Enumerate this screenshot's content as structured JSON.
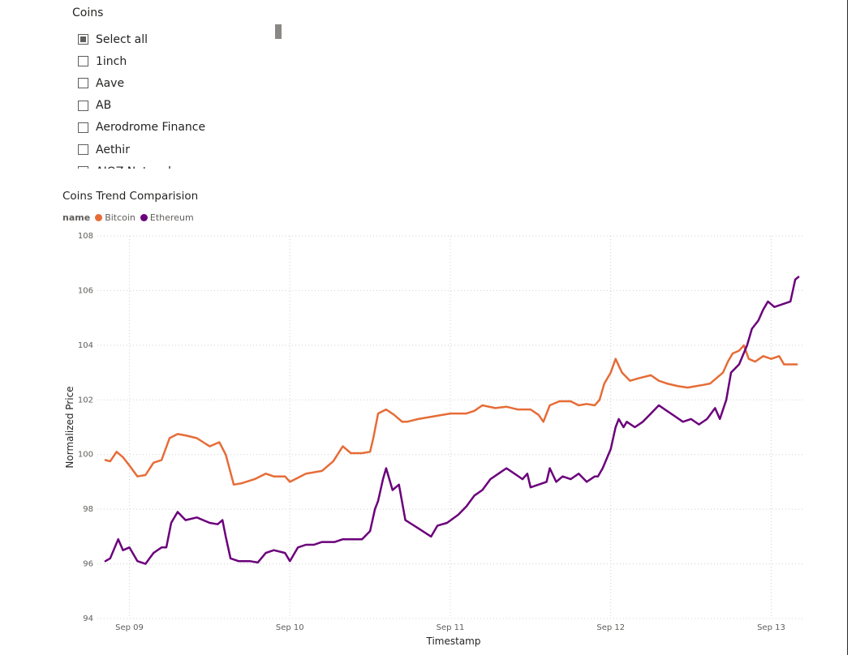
{
  "slicer": {
    "title": "Coins",
    "items": [
      {
        "label": "Select all",
        "state": "partial"
      },
      {
        "label": "1inch",
        "state": "unchecked"
      },
      {
        "label": "Aave",
        "state": "unchecked"
      },
      {
        "label": "AB",
        "state": "unchecked"
      },
      {
        "label": "Aerodrome Finance",
        "state": "unchecked"
      },
      {
        "label": "Aethir",
        "state": "unchecked"
      },
      {
        "label": "AIOZ Network",
        "state": "unchecked"
      }
    ]
  },
  "legend": {
    "key": "name"
  },
  "colors": {
    "bitcoin": "#E66C37",
    "ethereum": "#6B007B",
    "grid": "#d0d0d0"
  },
  "chart_data": {
    "type": "line",
    "title": "Coins Trend Comparision",
    "xlabel": "Timestamp",
    "ylabel": "Normalized Price",
    "ylim": [
      94,
      108
    ],
    "yticks": [
      94,
      96,
      98,
      100,
      102,
      104,
      106,
      108
    ],
    "xticks": [
      "Sep 09",
      "Sep 10",
      "Sep 11",
      "Sep 12",
      "Sep 13"
    ],
    "grid": true,
    "legend_position": "top-left",
    "series": [
      {
        "name": "Bitcoin",
        "points": [
          [
            8.85,
            99.8
          ],
          [
            8.88,
            99.75
          ],
          [
            8.92,
            100.1
          ],
          [
            8.96,
            99.9
          ],
          [
            9.0,
            99.6
          ],
          [
            9.05,
            99.2
          ],
          [
            9.1,
            99.25
          ],
          [
            9.15,
            99.7
          ],
          [
            9.2,
            99.8
          ],
          [
            9.25,
            100.6
          ],
          [
            9.3,
            100.75
          ],
          [
            9.35,
            100.7
          ],
          [
            9.42,
            100.6
          ],
          [
            9.5,
            100.3
          ],
          [
            9.56,
            100.45
          ],
          [
            9.6,
            100.0
          ],
          [
            9.65,
            98.9
          ],
          [
            9.7,
            98.95
          ],
          [
            9.78,
            99.1
          ],
          [
            9.85,
            99.3
          ],
          [
            9.9,
            99.2
          ],
          [
            9.97,
            99.2
          ],
          [
            10.0,
            99.0
          ],
          [
            10.05,
            99.15
          ],
          [
            10.1,
            99.3
          ],
          [
            10.2,
            99.4
          ],
          [
            10.27,
            99.75
          ],
          [
            10.33,
            100.3
          ],
          [
            10.38,
            100.05
          ],
          [
            10.45,
            100.05
          ],
          [
            10.5,
            100.1
          ],
          [
            10.52,
            100.6
          ],
          [
            10.55,
            101.5
          ],
          [
            10.6,
            101.65
          ],
          [
            10.65,
            101.45
          ],
          [
            10.7,
            101.2
          ],
          [
            10.73,
            101.2
          ],
          [
            10.8,
            101.3
          ],
          [
            10.9,
            101.4
          ],
          [
            11.0,
            101.5
          ],
          [
            11.1,
            101.5
          ],
          [
            11.15,
            101.6
          ],
          [
            11.2,
            101.8
          ],
          [
            11.28,
            101.7
          ],
          [
            11.35,
            101.75
          ],
          [
            11.42,
            101.65
          ],
          [
            11.5,
            101.65
          ],
          [
            11.55,
            101.45
          ],
          [
            11.58,
            101.2
          ],
          [
            11.62,
            101.8
          ],
          [
            11.68,
            101.95
          ],
          [
            11.75,
            101.95
          ],
          [
            11.8,
            101.8
          ],
          [
            11.85,
            101.85
          ],
          [
            11.9,
            101.8
          ],
          [
            11.93,
            102.0
          ],
          [
            11.96,
            102.6
          ],
          [
            12.0,
            103.0
          ],
          [
            12.03,
            103.5
          ],
          [
            12.07,
            103.0
          ],
          [
            12.12,
            102.7
          ],
          [
            12.18,
            102.8
          ],
          [
            12.25,
            102.9
          ],
          [
            12.3,
            102.7
          ],
          [
            12.35,
            102.6
          ],
          [
            12.42,
            102.5
          ],
          [
            12.48,
            102.45
          ],
          [
            12.53,
            102.5
          ],
          [
            12.58,
            102.55
          ],
          [
            12.62,
            102.6
          ],
          [
            12.66,
            102.8
          ],
          [
            12.7,
            103.0
          ],
          [
            12.73,
            103.4
          ],
          [
            12.76,
            103.7
          ],
          [
            12.8,
            103.8
          ],
          [
            12.83,
            104.0
          ],
          [
            12.86,
            103.5
          ],
          [
            12.9,
            103.4
          ],
          [
            12.95,
            103.6
          ],
          [
            13.0,
            103.5
          ],
          [
            13.05,
            103.6
          ],
          [
            13.08,
            103.3
          ],
          [
            13.12,
            103.3
          ],
          [
            13.16,
            103.3
          ]
        ]
      },
      {
        "name": "Ethereum",
        "points": [
          [
            8.85,
            96.1
          ],
          [
            8.88,
            96.2
          ],
          [
            8.93,
            96.9
          ],
          [
            8.96,
            96.5
          ],
          [
            9.0,
            96.6
          ],
          [
            9.05,
            96.1
          ],
          [
            9.1,
            96.0
          ],
          [
            9.15,
            96.4
          ],
          [
            9.2,
            96.6
          ],
          [
            9.23,
            96.6
          ],
          [
            9.26,
            97.5
          ],
          [
            9.3,
            97.9
          ],
          [
            9.35,
            97.6
          ],
          [
            9.42,
            97.7
          ],
          [
            9.5,
            97.5
          ],
          [
            9.55,
            97.45
          ],
          [
            9.58,
            97.6
          ],
          [
            9.6,
            97.0
          ],
          [
            9.63,
            96.2
          ],
          [
            9.68,
            96.1
          ],
          [
            9.75,
            96.1
          ],
          [
            9.8,
            96.05
          ],
          [
            9.85,
            96.4
          ],
          [
            9.9,
            96.5
          ],
          [
            9.97,
            96.4
          ],
          [
            10.0,
            96.1
          ],
          [
            10.05,
            96.6
          ],
          [
            10.1,
            96.7
          ],
          [
            10.15,
            96.7
          ],
          [
            10.2,
            96.8
          ],
          [
            10.28,
            96.8
          ],
          [
            10.33,
            96.9
          ],
          [
            10.4,
            96.9
          ],
          [
            10.45,
            96.9
          ],
          [
            10.5,
            97.2
          ],
          [
            10.53,
            98.0
          ],
          [
            10.55,
            98.3
          ],
          [
            10.58,
            99.1
          ],
          [
            10.6,
            99.5
          ],
          [
            10.64,
            98.7
          ],
          [
            10.68,
            98.9
          ],
          [
            10.72,
            97.6
          ],
          [
            10.8,
            97.3
          ],
          [
            10.88,
            97.0
          ],
          [
            10.92,
            97.4
          ],
          [
            10.98,
            97.5
          ],
          [
            11.05,
            97.8
          ],
          [
            11.1,
            98.1
          ],
          [
            11.15,
            98.5
          ],
          [
            11.2,
            98.7
          ],
          [
            11.25,
            99.1
          ],
          [
            11.3,
            99.3
          ],
          [
            11.35,
            99.5
          ],
          [
            11.4,
            99.3
          ],
          [
            11.45,
            99.1
          ],
          [
            11.48,
            99.3
          ],
          [
            11.5,
            98.8
          ],
          [
            11.55,
            98.9
          ],
          [
            11.6,
            99.0
          ],
          [
            11.62,
            99.5
          ],
          [
            11.66,
            99.0
          ],
          [
            11.7,
            99.2
          ],
          [
            11.75,
            99.1
          ],
          [
            11.8,
            99.3
          ],
          [
            11.85,
            99.0
          ],
          [
            11.9,
            99.2
          ],
          [
            11.92,
            99.2
          ],
          [
            11.95,
            99.5
          ],
          [
            12.0,
            100.2
          ],
          [
            12.03,
            101.0
          ],
          [
            12.05,
            101.3
          ],
          [
            12.08,
            101.0
          ],
          [
            12.1,
            101.2
          ],
          [
            12.15,
            101.0
          ],
          [
            12.2,
            101.2
          ],
          [
            12.25,
            101.5
          ],
          [
            12.3,
            101.8
          ],
          [
            12.35,
            101.6
          ],
          [
            12.4,
            101.4
          ],
          [
            12.45,
            101.2
          ],
          [
            12.5,
            101.3
          ],
          [
            12.55,
            101.1
          ],
          [
            12.6,
            101.3
          ],
          [
            12.65,
            101.7
          ],
          [
            12.68,
            101.3
          ],
          [
            12.72,
            102.0
          ],
          [
            12.75,
            103.0
          ],
          [
            12.8,
            103.3
          ],
          [
            12.85,
            104.0
          ],
          [
            12.88,
            104.6
          ],
          [
            12.92,
            104.9
          ],
          [
            12.95,
            105.3
          ],
          [
            12.98,
            105.6
          ],
          [
            13.02,
            105.4
          ],
          [
            13.07,
            105.5
          ],
          [
            13.12,
            105.6
          ],
          [
            13.15,
            106.4
          ],
          [
            13.17,
            106.5
          ]
        ]
      }
    ]
  }
}
